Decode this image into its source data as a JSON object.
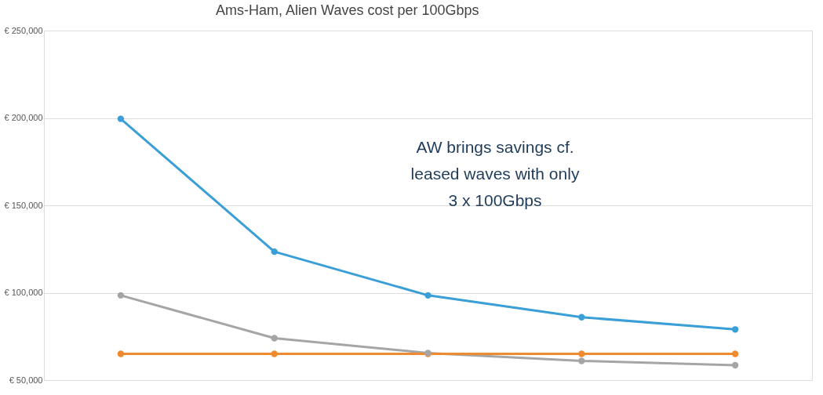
{
  "chart_data": {
    "type": "line",
    "title": "Ams-Ham, Alien Waves cost per 100Gbps",
    "categories": [
      null,
      null,
      null,
      null,
      null
    ],
    "series": [
      {
        "color": "#3a9fd6",
        "values": [
          199500,
          123500,
          98500,
          86000,
          79000
        ]
      },
      {
        "color": "#a5a5a5",
        "values": [
          98500,
          74000,
          65500,
          61000,
          58500
        ]
      },
      {
        "color": "#f08a30",
        "values": [
          65000,
          65000,
          65000,
          65000,
          65000
        ]
      }
    ],
    "ylim": [
      50000,
      250000
    ],
    "yticks": [
      {
        "value": 50000,
        "label": "€ 50,000"
      },
      {
        "value": 100000,
        "label": "€ 100,000"
      },
      {
        "value": 150000,
        "label": "€ 150,000"
      },
      {
        "value": 200000,
        "label": "€ 200,000"
      },
      {
        "value": 250000,
        "label": "€ 250,000"
      }
    ],
    "grid": "y",
    "legend": false,
    "marker": "circle",
    "line_style": "solid",
    "annotations": [
      "AW brings savings cf.\nleased waves with only\n3 x 100Gbps"
    ]
  }
}
